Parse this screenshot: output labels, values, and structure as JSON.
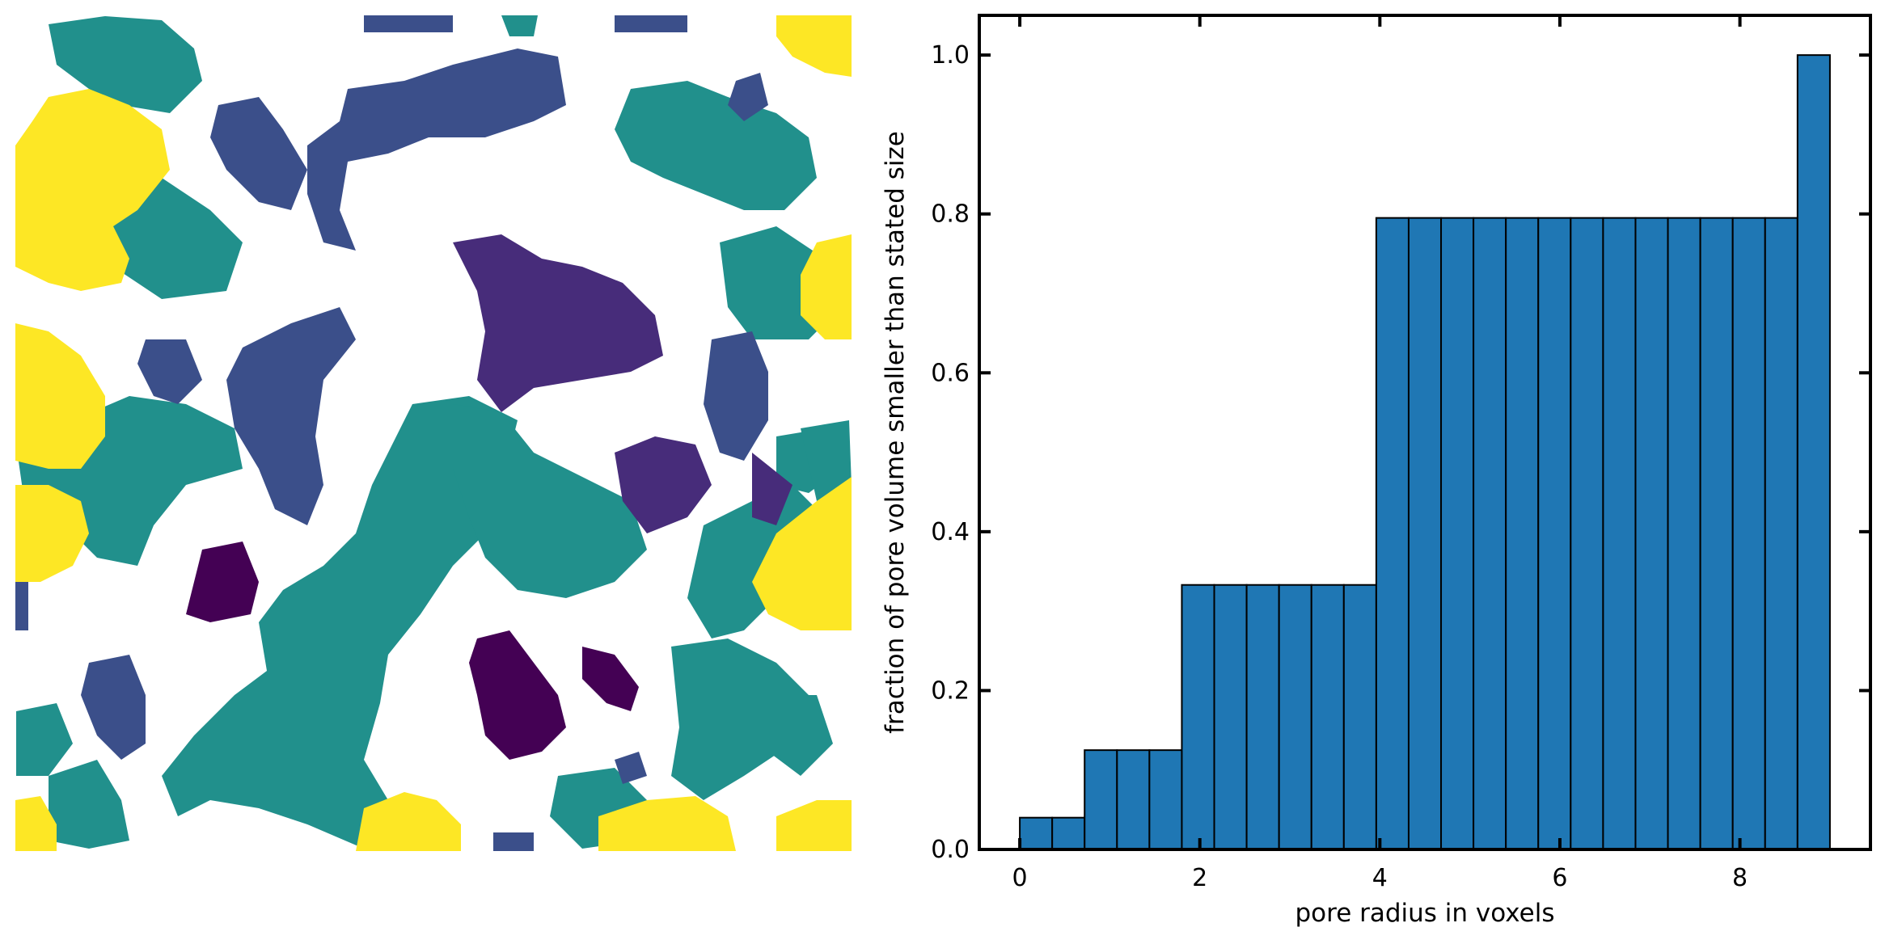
{
  "figure": {
    "left_panel": {
      "kind": "pore size map",
      "colormap": "viridis",
      "background_color": "#ffffff",
      "colors": [
        "#440154",
        "#472c7a",
        "#3b4f8a",
        "#21908c",
        "#fde725"
      ]
    },
    "bar_color": "#1f77b4",
    "edge_color": "#000000"
  },
  "chart_data": {
    "type": "bar",
    "title": "",
    "xlabel": "pore radius in voxels",
    "ylabel": "fraction of pore volume smaller than stated size",
    "xlim": [
      -0.45,
      9.45
    ],
    "ylim": [
      0,
      1.05
    ],
    "xticks": [
      0,
      2,
      4,
      6,
      8
    ],
    "xtick_labels": [
      "0",
      "2",
      "4",
      "6",
      "8"
    ],
    "yticks": [
      0.0,
      0.2,
      0.4,
      0.6,
      0.8,
      1.0
    ],
    "ytick_labels": [
      "0.0",
      "0.2",
      "0.4",
      "0.6",
      "0.8",
      "1.0"
    ],
    "bin_edges": [
      0.0,
      0.36,
      0.72,
      1.08,
      1.44,
      1.8,
      2.16,
      2.52,
      2.88,
      3.24,
      3.6,
      3.96,
      4.32,
      4.68,
      5.04,
      5.4,
      5.76,
      6.12,
      6.48,
      6.84,
      7.2,
      7.56,
      7.92,
      8.28,
      8.64,
      9.0
    ],
    "values": [
      0.04,
      0.04,
      0.125,
      0.125,
      0.125,
      0.333,
      0.333,
      0.333,
      0.333,
      0.333,
      0.333,
      0.795,
      0.795,
      0.795,
      0.795,
      0.795,
      0.795,
      0.795,
      0.795,
      0.795,
      0.795,
      0.795,
      0.795,
      0.795,
      1.0
    ],
    "grid": false,
    "legend": "none"
  }
}
